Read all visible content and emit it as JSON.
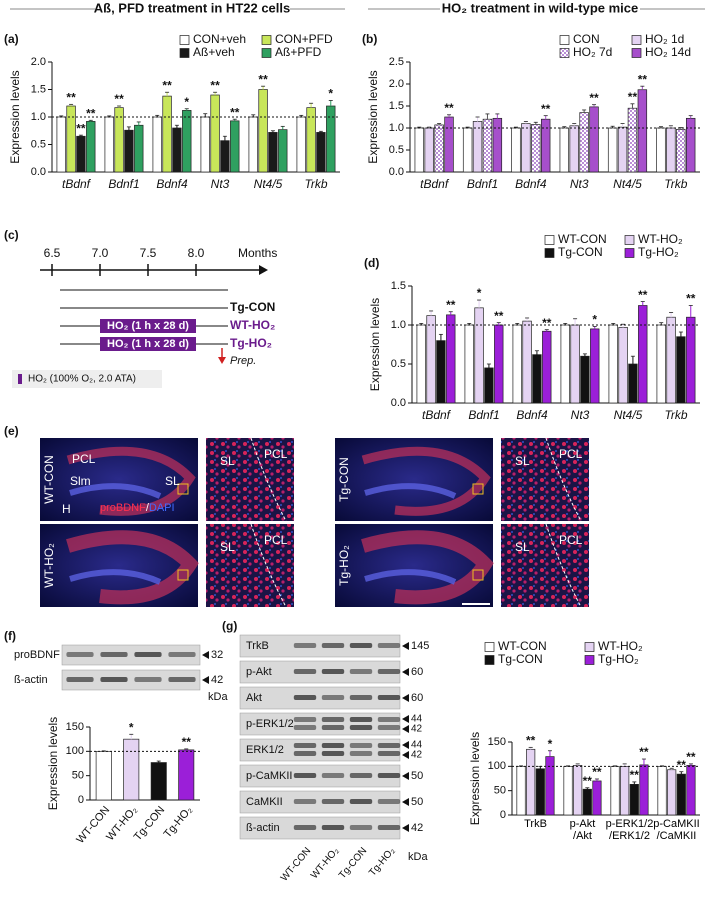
{
  "headers": {
    "left": "Aß, PFD treatment in HT22 cells",
    "right": "HO₂ treatment  in wild-type mice"
  },
  "chart_data": [
    {
      "type": "bar",
      "label": "(a)",
      "ylabel": "Expression levels",
      "category_style": "italic",
      "legend": "top-right",
      "categories": [
        "tBdnf",
        "Bdnf1",
        "Bdnf4",
        "Nt3",
        "Nt4/5",
        "Trkb"
      ],
      "series": [
        {
          "name": "CON+veh",
          "color": "#ffffff",
          "values": [
            1,
            1,
            1,
            1,
            1,
            1
          ],
          "errors": [
            0.02,
            0.02,
            0.03,
            0.06,
            0.04,
            0.03
          ]
        },
        {
          "name": "CON+PFD",
          "color": "#c8e65a",
          "values": [
            1.2,
            1.17,
            1.38,
            1.4,
            1.5,
            1.17
          ],
          "errors": [
            0.03,
            0.03,
            0.07,
            0.05,
            0.06,
            0.08
          ],
          "significance": [
            "**",
            "**",
            "**",
            "**",
            "**",
            null
          ]
        },
        {
          "name": "Aß+veh",
          "color": "#1a1a1a",
          "values": [
            0.65,
            0.76,
            0.8,
            0.57,
            0.72,
            0.72
          ],
          "errors": [
            0.02,
            0.06,
            0.05,
            0.08,
            0.03,
            0.02
          ],
          "significance": [
            "**",
            null,
            null,
            null,
            null,
            null
          ]
        },
        {
          "name": "Aß+PFD",
          "color": "#2fa060",
          "values": [
            0.92,
            0.85,
            1.12,
            0.93,
            0.77,
            1.2
          ],
          "errors": [
            0.02,
            0.06,
            0.03,
            0.03,
            0.06,
            0.1
          ],
          "significance": [
            "**",
            null,
            "*",
            "**",
            null,
            "*"
          ]
        }
      ],
      "ylim": [
        0,
        2
      ],
      "yticks": [
        {
          "value": 0,
          "label": "0.0"
        },
        0.5,
        {
          "value": 1,
          "label": "1.0"
        },
        1.5,
        {
          "value": 2,
          "label": "2.0"
        }
      ],
      "reference": 1
    },
    {
      "type": "bar",
      "label": "(b)",
      "ylabel": "Expression levels",
      "category_style": "italic",
      "legend": "top-right",
      "categories": [
        "tBdnf",
        "Bdnf1",
        "Bdnf4",
        "Nt3",
        "Nt4/5",
        "Trkb"
      ],
      "series": [
        {
          "name": "CON",
          "color": "#ffffff",
          "values": [
            1,
            1,
            1,
            1,
            1,
            1
          ],
          "errors": [
            0.02,
            0.02,
            0.02,
            0.03,
            0.04,
            0.03
          ]
        },
        {
          "name": "HO₂ 1d",
          "color": "#e4d3f2",
          "values": [
            1.0,
            1.15,
            1.1,
            1.05,
            1.02,
            1.0
          ],
          "errors": [
            0.02,
            0.1,
            0.05,
            0.05,
            0.08,
            0.05
          ]
        },
        {
          "name": "HO₂ 7d",
          "color": "#b98fd6",
          "pattern": "checker",
          "values": [
            1.07,
            1.2,
            1.08,
            1.35,
            1.45,
            0.97
          ],
          "errors": [
            0.03,
            0.12,
            0.05,
            0.06,
            0.1,
            0.04
          ],
          "significance": [
            null,
            null,
            null,
            null,
            "**",
            null
          ]
        },
        {
          "name": "HO₂ 14d",
          "color": "#a64fcb",
          "values": [
            1.25,
            1.22,
            1.2,
            1.48,
            1.87,
            1.22
          ],
          "errors": [
            0.05,
            0.1,
            0.08,
            0.05,
            0.08,
            0.06
          ],
          "significance": [
            "**",
            null,
            "**",
            "**",
            "**",
            null
          ]
        }
      ],
      "ylim": [
        0,
        2.5
      ],
      "yticks": [
        {
          "value": 0,
          "label": "0.0"
        },
        0.5,
        {
          "value": 1,
          "label": "1.0"
        },
        1.5,
        {
          "value": 2,
          "label": "2.0"
        },
        2.5
      ],
      "reference": 1
    },
    {
      "type": "bar",
      "label": "(d)",
      "ylabel": "Expression levels",
      "category_style": "italic",
      "legend": "top-right",
      "categories": [
        "tBdnf",
        "Bdnf1",
        "Bdnf4",
        "Nt3",
        "Nt4/5",
        "Trkb"
      ],
      "series": [
        {
          "name": "WT-CON",
          "color": "#ffffff",
          "values": [
            1,
            1,
            1,
            1,
            1,
            1
          ],
          "errors": [
            0.02,
            0.02,
            0.02,
            0.02,
            0.02,
            0.03
          ]
        },
        {
          "name": "WT-HO₂",
          "color": "#e4d3f2",
          "values": [
            1.12,
            1.22,
            1.05,
            1.0,
            0.97,
            1.1
          ],
          "errors": [
            0.06,
            0.1,
            0.04,
            0.08,
            0.04,
            0.06
          ],
          "significance": [
            null,
            "*",
            null,
            null,
            null,
            null
          ]
        },
        {
          "name": "Tg-CON",
          "color": "#111111",
          "values": [
            0.8,
            0.45,
            0.62,
            0.6,
            0.5,
            0.85
          ],
          "errors": [
            0.08,
            0.05,
            0.05,
            0.03,
            0.1,
            0.06
          ]
        },
        {
          "name": "Tg-HO₂",
          "color": "#9b1fd8",
          "values": [
            1.13,
            1.0,
            0.92,
            0.95,
            1.25,
            1.1
          ],
          "errors": [
            0.04,
            0.03,
            0.02,
            0.03,
            0.05,
            0.15
          ],
          "significance": [
            "**",
            "**",
            "**",
            "*",
            "**",
            "**"
          ]
        }
      ],
      "ylim": [
        0,
        1.5
      ],
      "yticks": [
        {
          "value": 0,
          "label": "0.0"
        },
        0.5,
        {
          "value": 1,
          "label": "1.0"
        },
        1.5
      ],
      "reference": 1
    },
    {
      "type": "bar",
      "ylabel": "Expression levels",
      "categories": [
        "WT-CON",
        "WT-HO₂",
        "Tg-CON",
        "Tg-HO₂"
      ],
      "values": [
        100,
        125,
        77,
        103
      ],
      "colors": [
        "#ffffff",
        "#e4d3f2",
        "#111111",
        "#9b1fd8"
      ],
      "errors": [
        1,
        10,
        3,
        2
      ],
      "significance": [
        null,
        "*",
        null,
        "**"
      ],
      "ylim": [
        0,
        150
      ],
      "yticks": [
        0,
        50,
        100,
        150
      ],
      "reference": 100
    },
    {
      "type": "bar",
      "ylabel": "Expression levels",
      "legend": "top-right",
      "categories": [
        "TrkB",
        "p-Akt\n/Akt",
        "p-ERK1/2\n/ERK1/2",
        "p-CaMKII\n/CaMKII"
      ],
      "series": [
        {
          "name": "WT-CON",
          "color": "#ffffff",
          "values": [
            100,
            100,
            100,
            100
          ],
          "errors": [
            1,
            1,
            1,
            1
          ]
        },
        {
          "name": "WT-HO₂",
          "color": "#e4d3f2",
          "values": [
            135,
            102,
            100,
            93
          ],
          "errors": [
            4,
            3,
            5,
            3
          ],
          "significance": [
            "**",
            null,
            null,
            null
          ]
        },
        {
          "name": "Tg-CON",
          "color": "#111111",
          "values": [
            95,
            53,
            63,
            84
          ],
          "errors": [
            5,
            3,
            5,
            5
          ],
          "significance": [
            null,
            "**",
            "**",
            "**"
          ]
        },
        {
          "name": "Tg-HO₂",
          "color": "#9b1fd8",
          "values": [
            120,
            70,
            103,
            102
          ],
          "errors": [
            12,
            4,
            12,
            3
          ],
          "significance": [
            "*",
            "**",
            "**",
            "**"
          ]
        }
      ],
      "ylim": [
        0,
        150
      ],
      "yticks": [
        0,
        50,
        100,
        150
      ],
      "reference": 100
    }
  ],
  "timeline": {
    "label": "(c)",
    "ticks": [
      "6.5",
      "7.0",
      "7.5",
      "8.0"
    ],
    "unit": "Months",
    "groups": [
      "Tg-CON",
      "WT-HO₂",
      "Tg-HO₂"
    ],
    "treatment": "HO₂ (1 h x 28 d)",
    "prep": "Prep.",
    "key": "HO₂ (100% O₂, 2.0 ATA)"
  },
  "images": {
    "label": "(e)",
    "stain": [
      "proBDNF",
      "/",
      "DAPI"
    ],
    "panels": [
      {
        "group": "WT-CON",
        "regions": [
          "PCL",
          "Slm",
          "SL",
          "H"
        ],
        "zoom": [
          "SL",
          "PCL"
        ]
      },
      {
        "group": "Tg-CON",
        "zoom": [
          "SL",
          "PCL"
        ]
      },
      {
        "group": "WT-HO₂",
        "zoom": [
          "SL",
          "PCL"
        ]
      },
      {
        "group": "Tg-HO₂",
        "zoom": [
          "SL",
          "PCL"
        ]
      }
    ]
  },
  "blots": [
    {
      "label": "(f)",
      "rows": [
        {
          "name": "proBDNF",
          "kda": [
            "32"
          ]
        },
        {
          "name": "ß-actin",
          "kda": [
            "42"
          ]
        }
      ],
      "unit": "kDa"
    },
    {
      "label": "(g)",
      "rows": [
        {
          "name": "TrkB",
          "kda": [
            "145"
          ]
        },
        {
          "name": "p-Akt",
          "kda": [
            "60"
          ]
        },
        {
          "name": "Akt",
          "kda": [
            "60"
          ]
        },
        {
          "name": "p-ERK1/2",
          "kda": [
            "44",
            "42"
          ]
        },
        {
          "name": "ERK1/2",
          "kda": [
            "44",
            "42"
          ]
        },
        {
          "name": "p-CaMKII",
          "kda": [
            "50"
          ]
        },
        {
          "name": "CaMKII",
          "kda": [
            "50"
          ]
        },
        {
          "name": "ß-actin",
          "kda": [
            "42"
          ]
        }
      ],
      "lanes": [
        "WT-CON",
        "WT-HO₂",
        "Tg-CON",
        "Tg-HO₂"
      ],
      "unit": "kDa"
    }
  ]
}
